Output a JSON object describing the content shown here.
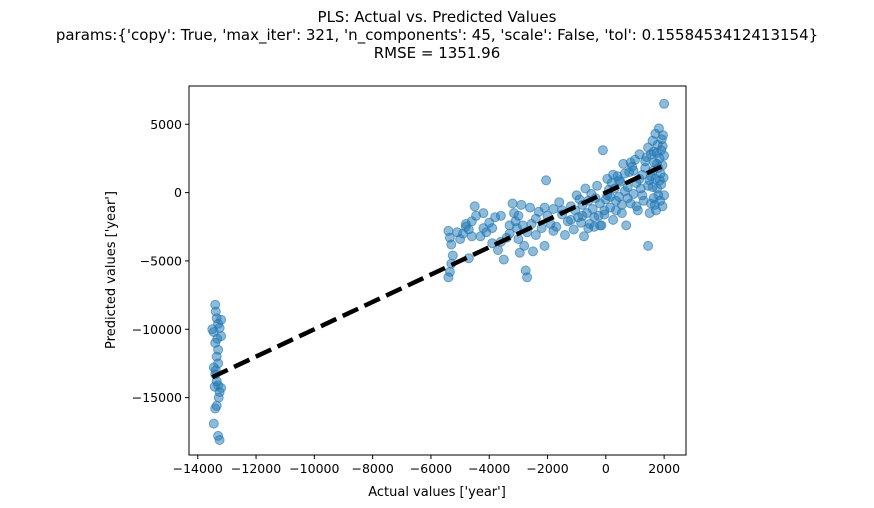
{
  "chart_data": {
    "type": "scatter",
    "title_lines": [
      "PLS: Actual vs. Predicted Values",
      "params:{'copy': True, 'max_iter': 321, 'n_components': 45, 'scale': False, 'tol': 0.1558453412413154}",
      "RMSE = 1351.96"
    ],
    "xlabel": "Actual values ['year']",
    "ylabel": "Predicted values ['year']",
    "xlim": [
      -14300,
      2750
    ],
    "ylim": [
      -19200,
      7800
    ],
    "xticks": [
      -14000,
      -12000,
      -10000,
      -8000,
      -6000,
      -4000,
      -2000,
      0,
      2000
    ],
    "yticks": [
      -15000,
      -10000,
      -5000,
      0,
      5000
    ],
    "reference_line": {
      "x": [
        -13500,
        1900
      ],
      "y": [
        -13500,
        1900
      ],
      "style": "dashed",
      "color": "#000000"
    },
    "point_color": "#1f77b4",
    "points": [
      [
        -13500,
        -10000
      ],
      [
        -13450,
        -10200
      ],
      [
        -13400,
        -8200
      ],
      [
        -13380,
        -8700
      ],
      [
        -13350,
        -9200
      ],
      [
        -13300,
        -9600
      ],
      [
        -13250,
        -9900
      ],
      [
        -13200,
        -10500
      ],
      [
        -13400,
        -11000
      ],
      [
        -13300,
        -11500
      ],
      [
        -13350,
        -12000
      ],
      [
        -13300,
        -12500
      ],
      [
        -13450,
        -12800
      ],
      [
        -13400,
        -13300
      ],
      [
        -13350,
        -13800
      ],
      [
        -13300,
        -14100
      ],
      [
        -13250,
        -14600
      ],
      [
        -13200,
        -14300
      ],
      [
        -13400,
        -15800
      ],
      [
        -13350,
        -15600
      ],
      [
        -13450,
        -16900
      ],
      [
        -13300,
        -17800
      ],
      [
        -13250,
        -18100
      ],
      [
        -13200,
        -9300
      ],
      [
        -13380,
        -13000
      ],
      [
        -13420,
        -14200
      ],
      [
        -13280,
        -15000
      ],
      [
        -13330,
        -10700
      ],
      [
        -5400,
        -2800
      ],
      [
        -5350,
        -3300
      ],
      [
        -5300,
        -3800
      ],
      [
        -5250,
        -4600
      ],
      [
        -5300,
        -5200
      ],
      [
        -5350,
        -5800
      ],
      [
        -5400,
        -6200
      ],
      [
        -5100,
        -2900
      ],
      [
        -4900,
        -3000
      ],
      [
        -4800,
        -2300
      ],
      [
        -4700,
        -2700
      ],
      [
        -4600,
        -3200
      ],
      [
        -4700,
        -4800
      ],
      [
        -4800,
        -2500
      ],
      [
        -4500,
        -1000
      ],
      [
        -4450,
        -1700
      ],
      [
        -4300,
        -3200
      ],
      [
        -4200,
        -2600
      ],
      [
        -4100,
        -2900
      ],
      [
        -4000,
        -2200
      ],
      [
        -3900,
        -3700
      ],
      [
        -3800,
        -1800
      ],
      [
        -3700,
        -4200
      ],
      [
        -3600,
        -1700
      ],
      [
        -3500,
        -4900
      ],
      [
        -3400,
        -3300
      ],
      [
        -3300,
        -3000
      ],
      [
        -3200,
        -800
      ],
      [
        -3150,
        -1500
      ],
      [
        -3100,
        -2100
      ],
      [
        -3050,
        -2600
      ],
      [
        -3000,
        -3400
      ],
      [
        -2950,
        -4400
      ],
      [
        -2900,
        -900
      ],
      [
        -2850,
        -2400
      ],
      [
        -2800,
        -3900
      ],
      [
        -2750,
        -5700
      ],
      [
        -2700,
        -6200
      ],
      [
        -2600,
        -1100
      ],
      [
        -2550,
        -2300
      ],
      [
        -2500,
        -4300
      ],
      [
        -2400,
        -3100
      ],
      [
        -2300,
        -1400
      ],
      [
        -2200,
        -2600
      ],
      [
        -2100,
        -3900
      ],
      [
        -2050,
        900
      ],
      [
        -2000,
        -1700
      ],
      [
        -1900,
        -2300
      ],
      [
        -1800,
        -1200
      ],
      [
        -1700,
        -2500
      ],
      [
        -1600,
        -700
      ],
      [
        -1500,
        -1600
      ],
      [
        -1400,
        -3100
      ],
      [
        -1300,
        -2100
      ],
      [
        -1200,
        -1000
      ],
      [
        -1100,
        -2700
      ],
      [
        -1050,
        -1300
      ],
      [
        -1000,
        -200
      ],
      [
        -950,
        -1800
      ],
      [
        -900,
        -500
      ],
      [
        -850,
        -2200
      ],
      [
        -800,
        -900
      ],
      [
        -750,
        -3200
      ],
      [
        -700,
        300
      ],
      [
        -650,
        -1500
      ],
      [
        -600,
        -600
      ],
      [
        -550,
        -2300
      ],
      [
        -500,
        -100
      ],
      [
        -450,
        -1200
      ],
      [
        -400,
        -2500
      ],
      [
        -350,
        -400
      ],
      [
        -300,
        500
      ],
      [
        -250,
        -1700
      ],
      [
        -200,
        -800
      ],
      [
        -150,
        -2400
      ],
      [
        -100,
        3100
      ],
      [
        -50,
        -1300
      ],
      [
        0,
        -500
      ],
      [
        50,
        -200
      ],
      [
        100,
        200
      ],
      [
        150,
        -1100
      ],
      [
        200,
        700
      ],
      [
        250,
        -2000
      ],
      [
        300,
        300
      ],
      [
        350,
        -600
      ],
      [
        400,
        1200
      ],
      [
        450,
        -300
      ],
      [
        500,
        800
      ],
      [
        550,
        -1500
      ],
      [
        600,
        2100
      ],
      [
        650,
        100
      ],
      [
        700,
        -2400
      ],
      [
        750,
        400
      ],
      [
        800,
        1500
      ],
      [
        850,
        -800
      ],
      [
        900,
        1900
      ],
      [
        950,
        -100
      ],
      [
        1000,
        2400
      ],
      [
        1050,
        700
      ],
      [
        1100,
        -1300
      ],
      [
        1150,
        2800
      ],
      [
        1200,
        300
      ],
      [
        1250,
        1300
      ],
      [
        1300,
        -600
      ],
      [
        1350,
        1800
      ],
      [
        1400,
        2600
      ],
      [
        1450,
        -3900
      ],
      [
        1450,
        3300
      ],
      [
        1500,
        900
      ],
      [
        1500,
        -1500
      ],
      [
        1550,
        1200
      ],
      [
        1550,
        2800
      ],
      [
        1600,
        400
      ],
      [
        1600,
        3800
      ],
      [
        1620,
        1600
      ],
      [
        1640,
        -400
      ],
      [
        1660,
        2200
      ],
      [
        1680,
        -900
      ],
      [
        1700,
        4300
      ],
      [
        1700,
        1000
      ],
      [
        1720,
        -1300
      ],
      [
        1740,
        2900
      ],
      [
        1760,
        300
      ],
      [
        1780,
        3500
      ],
      [
        1800,
        -200
      ],
      [
        1800,
        1800
      ],
      [
        1820,
        4700
      ],
      [
        1840,
        2500
      ],
      [
        1860,
        -600
      ],
      [
        1880,
        1400
      ],
      [
        1900,
        3100
      ],
      [
        1900,
        600
      ],
      [
        1920,
        3900
      ],
      [
        1940,
        -1000
      ],
      [
        1940,
        2000
      ],
      [
        1960,
        4200
      ],
      [
        1980,
        1100
      ],
      [
        2000,
        6500
      ],
      [
        2000,
        2700
      ],
      [
        2000,
        -200
      ],
      [
        1950,
        3400
      ],
      [
        1850,
        900
      ],
      [
        1750,
        2100
      ],
      [
        1650,
        3000
      ],
      [
        1550,
        -800
      ],
      [
        1450,
        500
      ],
      [
        1350,
        2300
      ],
      [
        1250,
        -200
      ],
      [
        1150,
        1000
      ],
      [
        1050,
        -1000
      ],
      [
        950,
        1600
      ],
      [
        850,
        2200
      ],
      [
        750,
        -400
      ],
      [
        650,
        1400
      ],
      [
        550,
        -900
      ],
      [
        450,
        900
      ],
      [
        350,
        -1300
      ],
      [
        250,
        1300
      ],
      [
        150,
        -300
      ],
      [
        50,
        1000
      ],
      [
        -50,
        -1600
      ],
      [
        -200,
        -2400
      ],
      [
        -400,
        -1800
      ],
      [
        -600,
        -2600
      ],
      [
        -800,
        -1700
      ],
      [
        -1200,
        -2000
      ],
      [
        -1500,
        -1300
      ],
      [
        -1800,
        -2800
      ],
      [
        -2100,
        -1100
      ],
      [
        -2400,
        -1900
      ],
      [
        -2700,
        -2900
      ],
      [
        -3000,
        -1700
      ],
      [
        -3300,
        -2400
      ],
      [
        -3600,
        -3600
      ],
      [
        -3900,
        -2600
      ],
      [
        -4200,
        -1500
      ],
      [
        -4600,
        -2100
      ],
      [
        -5000,
        -3400
      ]
    ]
  }
}
